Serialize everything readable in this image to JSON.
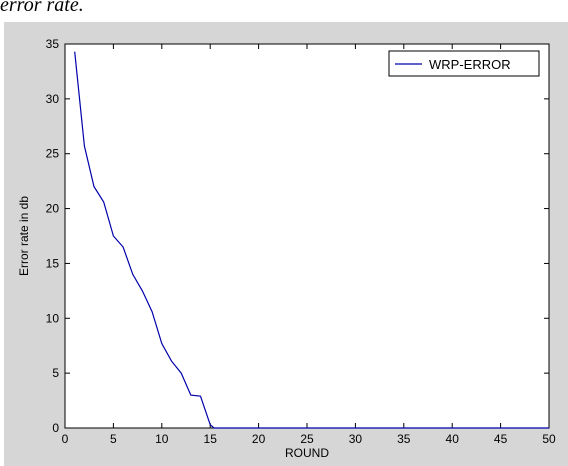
{
  "caption": "error rate.",
  "chart_data": {
    "type": "line",
    "title": "",
    "xlabel": "ROUND",
    "ylabel": "Error rate in db",
    "xlim": [
      0,
      50
    ],
    "ylim": [
      0,
      35
    ],
    "xticks": [
      0,
      5,
      10,
      15,
      20,
      25,
      30,
      35,
      40,
      45,
      50
    ],
    "yticks": [
      0,
      5,
      10,
      15,
      20,
      25,
      30,
      35
    ],
    "grid": false,
    "legend_position": "top-right",
    "series": [
      {
        "name": "WRP-ERROR",
        "color": "#0000aa",
        "x": [
          1,
          2,
          3,
          4,
          5,
          6,
          7,
          8,
          9,
          10,
          11,
          12,
          13,
          14,
          15,
          15.4,
          16,
          20,
          25,
          30,
          35,
          40,
          45,
          50
        ],
        "y": [
          34.3,
          25.7,
          22.0,
          20.6,
          17.5,
          16.5,
          14.0,
          12.5,
          10.6,
          7.7,
          6.1,
          5.0,
          3.0,
          2.9,
          0.3,
          0,
          0,
          0,
          0,
          0,
          0,
          0,
          0,
          0
        ]
      }
    ]
  }
}
